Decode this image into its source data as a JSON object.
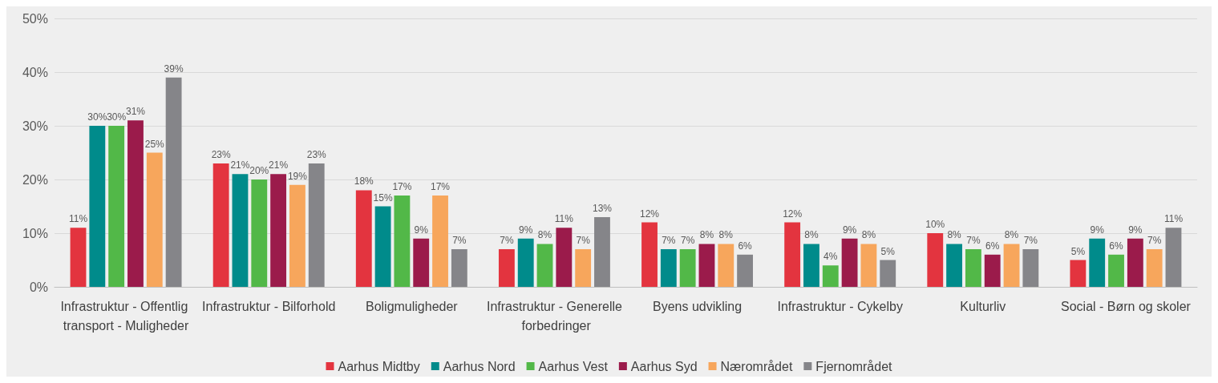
{
  "chart_data": {
    "type": "bar",
    "categories": [
      "Infrastruktur - Offentlig transport - Muligheder",
      "Infrastruktur - Bilforhold",
      "Boligmuligheder",
      "Infrastruktur - Generelle forbedringer",
      "Byens udvikling",
      "Infrastruktur - Cykelby",
      "Kulturliv",
      "Social - Børn og skoler"
    ],
    "series": [
      {
        "name": "Aarhus Midtby",
        "color": "#e3343f",
        "values": [
          11,
          23,
          18,
          7,
          12,
          12,
          10,
          5
        ],
        "value_labels": [
          "11%",
          "23%",
          "18%",
          "7%",
          "12%",
          "12%",
          "10%",
          "5%"
        ]
      },
      {
        "name": "Aarhus Nord",
        "color": "#008b8b",
        "values": [
          30,
          21,
          15,
          9,
          7,
          8,
          8,
          9
        ],
        "value_labels": [
          "30%",
          "21%",
          "15%",
          "9%",
          "7%",
          "8%",
          "8%",
          "9%"
        ]
      },
      {
        "name": "Aarhus Vest",
        "color": "#52b848",
        "values": [
          30,
          20,
          17,
          8,
          7,
          4,
          7,
          6
        ],
        "value_labels": [
          "30%",
          "20%",
          "17%",
          "8%",
          "7%",
          "4%",
          "7%",
          "6%"
        ]
      },
      {
        "name": "Aarhus Syd",
        "color": "#9b1b4b",
        "values": [
          31,
          21,
          9,
          11,
          8,
          9,
          6,
          9
        ],
        "value_labels": [
          "31%",
          "21%",
          "9%",
          "11%",
          "8%",
          "9%",
          "6%",
          "9%"
        ]
      },
      {
        "name": "Nærområdet",
        "color": "#f7a65c",
        "values": [
          25,
          19,
          17,
          7,
          8,
          8,
          8,
          7
        ],
        "value_labels": [
          "25%",
          "19%",
          "17%",
          "7%",
          "8%",
          "8%",
          "8%",
          "7%"
        ]
      },
      {
        "name": "Fjernområdet",
        "color": "#858589",
        "values": [
          39,
          23,
          7,
          13,
          6,
          5,
          7,
          11
        ],
        "value_labels": [
          "39%",
          "23%",
          "7%",
          "13%",
          "6%",
          "5%",
          "7%",
          "11%"
        ]
      }
    ],
    "ylim": [
      0,
      50
    ],
    "yticks": [
      {
        "value": 0,
        "label": "0%"
      },
      {
        "value": 10,
        "label": "10%"
      },
      {
        "value": 20,
        "label": "20%"
      },
      {
        "value": 30,
        "label": "30%"
      },
      {
        "value": 40,
        "label": "40%"
      },
      {
        "value": 50,
        "label": "50%"
      }
    ],
    "grid": "y",
    "legend": "bottom"
  }
}
